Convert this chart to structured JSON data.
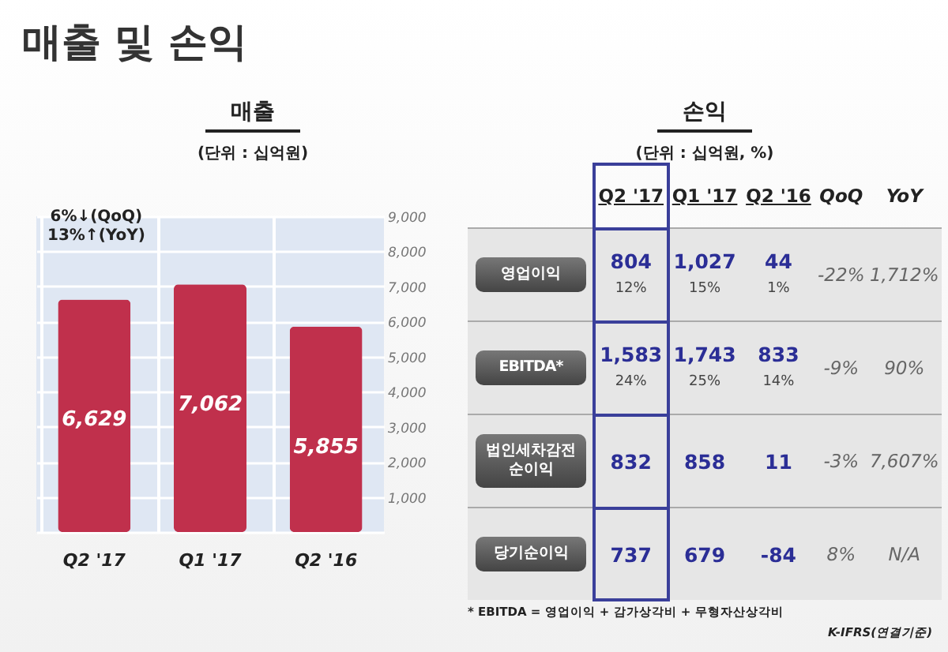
{
  "chart_data": [
    {
      "type": "bar",
      "title": "매출 및 손익",
      "subtitle": "매출",
      "annotations": [
        "(단위 : 십억원)",
        "6%↓(QoQ)",
        "13%↑(YoY)"
      ],
      "categories": [
        "Q2 '17",
        "Q1 '17",
        "Q2 '16"
      ],
      "values": [
        6629,
        7062,
        5855
      ],
      "color": "#c0304c",
      "ylim": [
        0,
        9000
      ],
      "yticks": [
        {
          "value": 0,
          "label": null
        },
        {
          "value": 1000,
          "label": "1,000"
        },
        {
          "value": 2000,
          "label": "2,000"
        },
        {
          "value": 3000,
          "label": "3,000"
        },
        {
          "value": 4000,
          "label": "4,000"
        },
        {
          "value": 5000,
          "label": "5,000"
        },
        {
          "value": 6000,
          "label": "6,000"
        },
        {
          "value": 7000,
          "label": "7,000"
        },
        {
          "value": 8000,
          "label": "8,000"
        },
        {
          "value": 9000,
          "label": "9,000"
        }
      ],
      "grid": true,
      "value_labels": [
        "6,629",
        "7,062",
        "5,855"
      ]
    },
    {
      "type": "other",
      "title": "손익",
      "subtitle": "(단위 : 십억원, %)",
      "categories": [
        "Q2 '17",
        "Q1 '17",
        "Q2 '16",
        "QoQ",
        "YoY"
      ],
      "y_categories": [
        "영업이익",
        "EBITDA*",
        "법인세차감전\n순이익",
        "당기순이익"
      ],
      "cell_labels": [
        [
          "804\n12%",
          "1,027\n15%",
          "44\n1%",
          "-22%",
          "1,712%"
        ],
        [
          "1,583\n24%",
          "1,743\n25%",
          "833\n14%",
          "-9%",
          "90%"
        ],
        [
          "832",
          "858",
          "11",
          "-3%",
          "7,607%"
        ],
        [
          "737",
          "679",
          "-84",
          "8%",
          "N/A"
        ]
      ],
      "annotations": [
        "* EBITDA = 영업이익 + 감가상각비 + 무형자산상각비",
        "K-IFRS(연결기준)"
      ]
    }
  ]
}
